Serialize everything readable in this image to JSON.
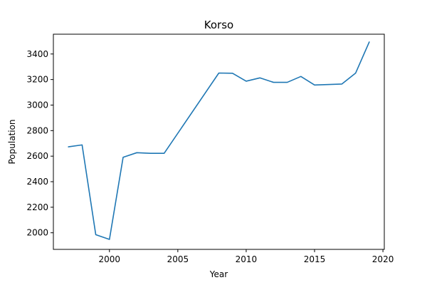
{
  "chart_data": {
    "type": "line",
    "title": "Korso",
    "xlabel": "Year",
    "ylabel": "Population",
    "xlim": [
      1995.9,
      2020.1
    ],
    "ylim": [
      1870,
      3555
    ],
    "x_ticks": [
      2000,
      2005,
      2010,
      2015,
      2020
    ],
    "y_ticks": [
      2000,
      2200,
      2400,
      2600,
      2800,
      3000,
      3200,
      3400
    ],
    "grid": false,
    "color": "#1f77b4",
    "series": [
      {
        "x": [
          1997,
          1998,
          1999,
          2000,
          2001,
          2002,
          2003,
          2004,
          2008,
          2009,
          2010,
          2011,
          2012,
          2013,
          2014,
          2015,
          2017,
          2018,
          2019
        ],
        "values": [
          2673,
          2688,
          1985,
          1948,
          2591,
          2627,
          2622,
          2622,
          3251,
          3249,
          3187,
          3213,
          3178,
          3178,
          3224,
          3157,
          3165,
          3250,
          3494
        ]
      }
    ]
  }
}
